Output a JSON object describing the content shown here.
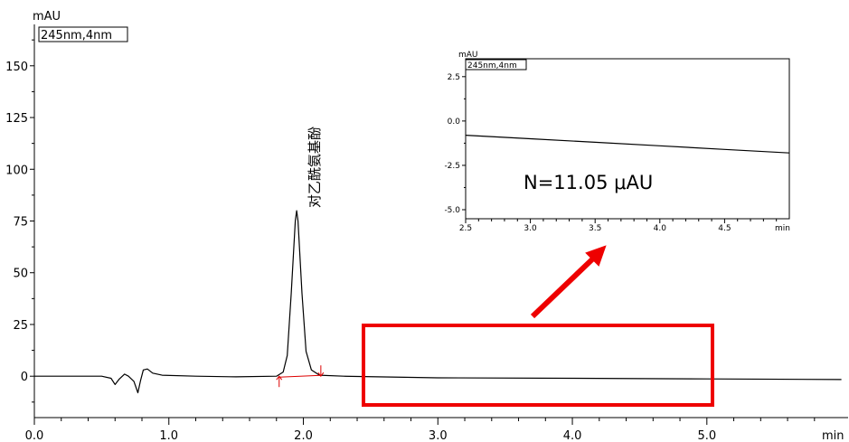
{
  "chart_data": [
    {
      "type": "line",
      "ylabel": "mAU",
      "xlabel": "min",
      "legend": "245nm,4nm",
      "xlim": [
        0.0,
        6.05
      ],
      "ylim": [
        -20,
        170
      ],
      "xticks": [
        0.0,
        1.0,
        2.0,
        3.0,
        4.0,
        5.0
      ],
      "xtick_labels": [
        "0.0",
        "1.0",
        "2.0",
        "3.0",
        "4.0",
        "5.0"
      ],
      "yticks": [
        0,
        25,
        50,
        75,
        100,
        125,
        150
      ],
      "ytick_labels": [
        "0",
        "25",
        "50",
        "75",
        "100",
        "125",
        "150"
      ],
      "peak": {
        "label": "对乙酰氨基酚",
        "x": 1.95,
        "y": 80
      },
      "integration_markers": {
        "start_x": 1.82,
        "end_x": 2.13
      },
      "series": [
        {
          "x": [
            0.0,
            0.5,
            0.57,
            0.6,
            0.63,
            0.67,
            0.7,
            0.74,
            0.77,
            0.79,
            0.81,
            0.84,
            0.88,
            0.95,
            1.2,
            1.5,
            1.8,
            1.85,
            1.88,
            1.91,
            1.94,
            1.95,
            1.96,
            1.99,
            2.02,
            2.06,
            2.12,
            2.3,
            3.0,
            4.0,
            5.0,
            6.0
          ],
          "y": [
            0.0,
            0.0,
            -1.0,
            -4.0,
            -1.5,
            1.0,
            0.0,
            -2.5,
            -8.0,
            -2.0,
            3.0,
            3.5,
            1.5,
            0.5,
            0.0,
            -0.3,
            0.0,
            2.0,
            10.0,
            40.0,
            75.0,
            80.0,
            75.0,
            40.0,
            12.0,
            3.0,
            0.5,
            0.0,
            -0.8,
            -1.0,
            -1.3,
            -1.6
          ]
        }
      ]
    },
    {
      "type": "line",
      "ylabel": "mAU",
      "xlabel": "min",
      "legend": "245nm,4nm",
      "annotation": "N=11.05 μAU",
      "xlim": [
        2.5,
        5.0
      ],
      "ylim": [
        -5.0,
        3.0
      ],
      "xticks": [
        2.5,
        3.0,
        3.5,
        4.0,
        4.5
      ],
      "xtick_labels": [
        "2.5",
        "3.0",
        "3.5",
        "4.0",
        "4.5"
      ],
      "yticks": [
        2.5,
        0.0,
        -2.5,
        -5.0
      ],
      "ytick_labels": [
        "2.5",
        "0.0",
        "-2.5",
        "-5.0"
      ],
      "series": [
        {
          "x": [
            2.5,
            3.0,
            3.5,
            4.0,
            4.5,
            5.0
          ],
          "y": [
            -0.8,
            -1.0,
            -1.2,
            -1.4,
            -1.6,
            -1.8
          ]
        }
      ]
    }
  ],
  "colors": {
    "trace": "#000000",
    "highlight_box": "#ee0000",
    "arrow": "#ee0000",
    "integration": "#dd0000"
  }
}
